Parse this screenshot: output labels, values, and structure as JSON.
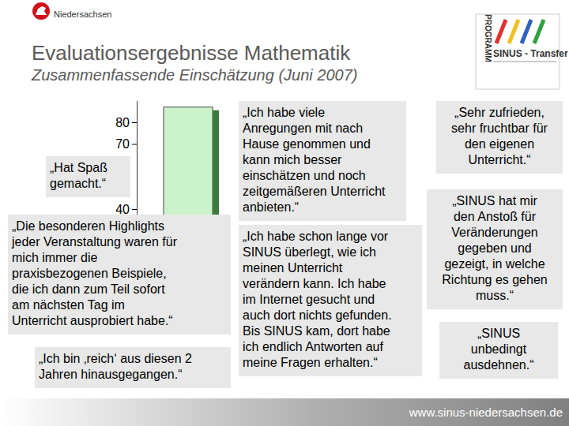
{
  "header": {
    "region": "Niedersachsen",
    "title": "Evaluationsergebnisse Mathematik",
    "subtitle": "Zusammenfassende Einschätzung (Juni 2007)",
    "logo_text": [
      "PROGRAMM",
      "SINUS - Transfer"
    ]
  },
  "chart_data": {
    "type": "bar",
    "categories": [
      null
    ],
    "values": [
      87
    ],
    "color": "#ccf2cc",
    "ylim": [
      0,
      90
    ],
    "yticks": [
      40,
      70,
      80
    ]
  },
  "quotes": [
    {
      "lines": [
        "„Ich habe viele",
        "Anregungen mit nach",
        "Hause genommen und",
        "kann mich besser",
        "einschätzen und noch",
        "zeitgemäßeren Unterricht",
        "anbieten.“"
      ]
    },
    {
      "lines": [
        "„Sehr zufrieden,",
        "sehr fruchtbar für",
        "den eigenen",
        "Unterricht.“"
      ]
    },
    {
      "lines": [
        "„Hat Spaß",
        "gemacht.“"
      ]
    },
    {
      "lines": [
        "„Die besonderen Highlights",
        "jeder Veranstaltung waren für",
        "mich immer die",
        "praxisbezogenen Beispiele,",
        "die ich dann zum Teil sofort",
        "am nächsten Tag im",
        "Unterricht ausprobiert habe.“"
      ]
    },
    {
      "lines": [
        "„Ich habe schon lange vor",
        "SINUS überlegt, wie ich",
        "meinen Unterricht",
        "verändern kann. Ich habe",
        "im Internet gesucht und",
        "auch dort nichts gefunden.",
        "Bis SINUS kam, dort habe",
        "ich endlich Antworten auf",
        "meine Fragen erhalten.“"
      ]
    },
    {
      "lines": [
        "„SINUS hat mir",
        "den Anstoß für",
        "Veränderungen",
        "gegeben und",
        "gezeigt, in welche",
        "Richtung es gehen",
        "muss.“"
      ]
    },
    {
      "lines": [
        "„SINUS",
        "unbedingt",
        "ausdehnen.“"
      ]
    },
    {
      "lines": [
        "„Ich bin ‚reich‘ aus diesen 2",
        "Jahren hinausgegangen.“"
      ]
    }
  ],
  "footer": "www.sinus-niedersachsen.de"
}
